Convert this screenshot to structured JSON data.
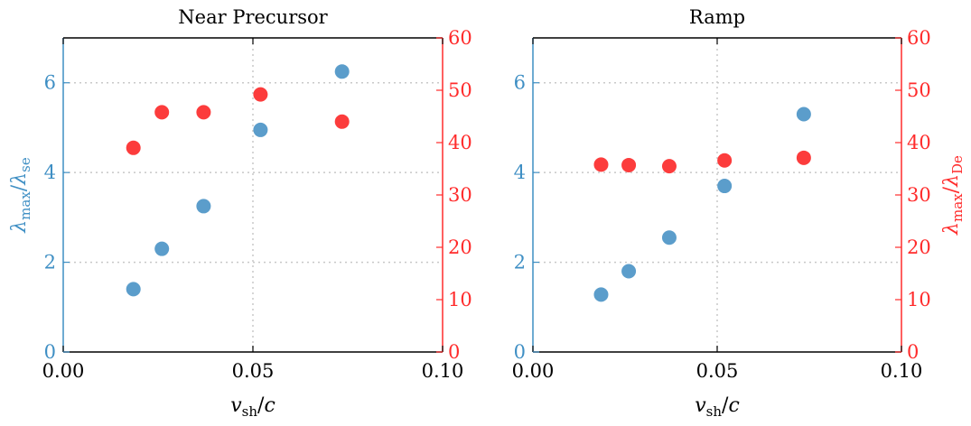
{
  "chart_data": [
    {
      "type": "scatter",
      "title": "Near Precursor",
      "xlabel": "v_sh/c",
      "ylabel_left": "λ_max/λ_se",
      "ylabel_right": "",
      "xlim": [
        0.0,
        0.1
      ],
      "ylim_left": [
        0,
        7
      ],
      "ylim_right": [
        0,
        60
      ],
      "xticks": [
        "0.00",
        "0.05",
        "0.10"
      ],
      "yticks_left": [
        "0",
        "2",
        "4",
        "6"
      ],
      "yticks_right": [
        "0",
        "10",
        "20",
        "30",
        "40",
        "50",
        "60"
      ],
      "grid": true,
      "colors": {
        "left": "#3f8fc4",
        "right": "#ff2b2b",
        "left_marker": "#5b9dcb",
        "right_marker": "#fc3c3c"
      },
      "series": [
        {
          "axis": "left",
          "x": [
            0.0185,
            0.026,
            0.037,
            0.052,
            0.0735
          ],
          "y": [
            1.4,
            2.3,
            3.25,
            4.95,
            6.25
          ]
        },
        {
          "axis": "right",
          "x": [
            0.0185,
            0.026,
            0.037,
            0.052,
            0.0735
          ],
          "y": [
            39,
            45.8,
            45.8,
            49.2,
            44
          ]
        }
      ]
    },
    {
      "type": "scatter",
      "title": "Ramp",
      "xlabel": "v_sh/c",
      "ylabel_left": "",
      "ylabel_right": "λ_max/λ_De",
      "xlim": [
        0.0,
        0.1
      ],
      "ylim_left": [
        0,
        7
      ],
      "ylim_right": [
        0,
        60
      ],
      "xticks": [
        "0.00",
        "0.05",
        "0.10"
      ],
      "yticks_left": [
        "0",
        "2",
        "4",
        "6"
      ],
      "yticks_right": [
        "0",
        "10",
        "20",
        "30",
        "40",
        "50",
        "60"
      ],
      "grid": true,
      "colors": {
        "left": "#3f8fc4",
        "right": "#ff2b2b",
        "left_marker": "#5b9dcb",
        "right_marker": "#fc3c3c"
      },
      "series": [
        {
          "axis": "left",
          "x": [
            0.0185,
            0.026,
            0.037,
            0.052,
            0.0735
          ],
          "y": [
            1.28,
            1.8,
            2.55,
            3.7,
            5.3
          ]
        },
        {
          "axis": "right",
          "x": [
            0.0185,
            0.026,
            0.037,
            0.052,
            0.0735
          ],
          "y": [
            35.8,
            35.7,
            35.5,
            36.6,
            37.1
          ]
        }
      ]
    }
  ]
}
